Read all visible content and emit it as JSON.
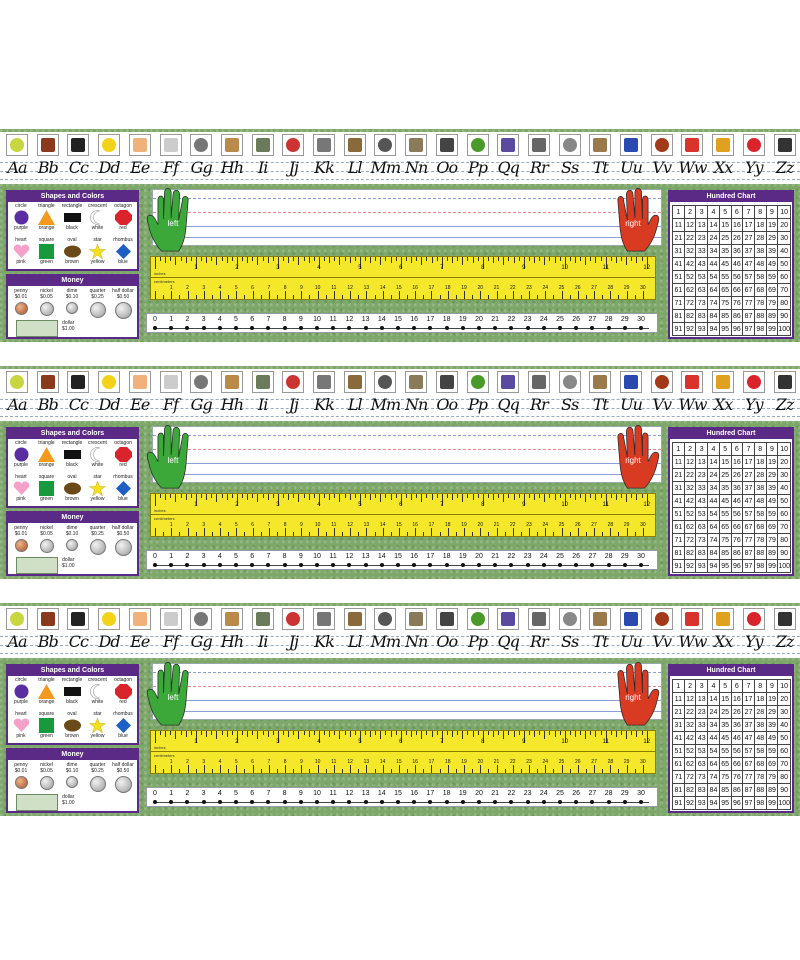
{
  "letters": [
    "Aa",
    "Bb",
    "Cc",
    "Dd",
    "Ee",
    "Ff",
    "Gg",
    "Hh",
    "Ii",
    "Jj",
    "Kk",
    "Ll",
    "Mm",
    "Nn",
    "Oo",
    "Pp",
    "Qq",
    "Rr",
    "Ss",
    "Tt",
    "Uu",
    "Vv",
    "Ww",
    "Xx",
    "Yy",
    "Zz"
  ],
  "pictures": [
    "apple-icon",
    "books-icon",
    "crayon-icon",
    "duck-icon",
    "eggs-icon",
    "fishbowl-icon",
    "goat-icon",
    "horse-icon",
    "iguana-icon",
    "jacks-icon",
    "key-icon",
    "ladder-icon",
    "magnifier-icon",
    "nest-icon",
    "ostrich-icon",
    "peas-icon",
    "quilt-icon",
    "rhino-icon",
    "sailboat-icon",
    "timer-icon",
    "umbrella-icon",
    "violin-icon",
    "watermelon-icon",
    "xylophone-icon",
    "yoyo-icon",
    "zebra-icon"
  ],
  "shapes_panel": {
    "title": "Shapes and Colors",
    "items": [
      {
        "name": "circle",
        "color": "purple",
        "hex": "#5a2ea0"
      },
      {
        "name": "triangle",
        "color": "orange",
        "hex": "#f39a1e"
      },
      {
        "name": "rectangle",
        "color": "black",
        "hex": "#111111"
      },
      {
        "name": "crescent",
        "color": "white",
        "hex": "#ffffff"
      },
      {
        "name": "octagon",
        "color": "red",
        "hex": "#d9242b"
      },
      {
        "name": "heart",
        "color": "pink",
        "hex": "#f4a0c8"
      },
      {
        "name": "square",
        "color": "green",
        "hex": "#169a3c"
      },
      {
        "name": "oval",
        "color": "brown",
        "hex": "#6b4a1a"
      },
      {
        "name": "star",
        "color": "yellow",
        "hex": "#f6df1e"
      },
      {
        "name": "rhombus",
        "color": "blue",
        "hex": "#1d5fc5"
      }
    ]
  },
  "money_panel": {
    "title": "Money",
    "coins": [
      {
        "name": "penny",
        "value": "$0.01"
      },
      {
        "name": "nickel",
        "value": "$0.05"
      },
      {
        "name": "dime",
        "value": "$0.10"
      },
      {
        "name": "quarter",
        "value": "$0.25"
      },
      {
        "name": "half dollar",
        "value": "$0.50"
      }
    ],
    "bill": {
      "name": "dollar",
      "value": "$1.00"
    }
  },
  "hands": {
    "left": "left",
    "right": "right"
  },
  "ruler": {
    "inches_label": "inches",
    "centimeters_label": "centimeters",
    "inches": [
      1,
      2,
      3,
      4,
      5,
      6,
      7,
      8,
      9,
      10,
      11,
      12
    ],
    "centimeters": [
      1,
      2,
      3,
      4,
      5,
      6,
      7,
      8,
      9,
      10,
      11,
      12,
      13,
      14,
      15,
      16,
      17,
      18,
      19,
      20,
      21,
      22,
      23,
      24,
      25,
      26,
      27,
      28,
      29,
      30
    ]
  },
  "number_line": {
    "min": 0,
    "max": 30
  },
  "hundred_chart": {
    "title": "Hundred Chart",
    "max": 100
  },
  "colors": {
    "panel": "#5b2a86",
    "grass": "#7ea86a",
    "ruler": "#f5e82a",
    "left_hand": "#3da83a",
    "right_hand": "#d93a22"
  }
}
